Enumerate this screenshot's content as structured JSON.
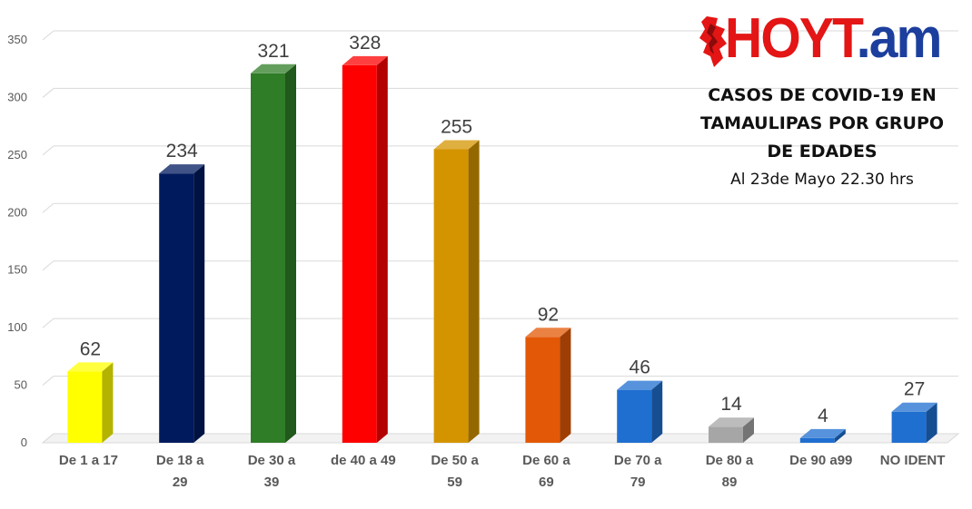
{
  "logo": {
    "text_main": "HOYT",
    "text_accent": ".am"
  },
  "chart_data": {
    "type": "bar",
    "title_lines": [
      "CASOS DE COVID-19 EN",
      "TAMAULIPAS POR GRUPO",
      "DE EDADES"
    ],
    "subtitle": "Al 23de Mayo 22.30 hrs",
    "categories": [
      [
        "De 1 a 17"
      ],
      [
        "De 18 a",
        "29"
      ],
      [
        "De 30 a",
        "39"
      ],
      [
        "de 40 a 49"
      ],
      [
        "De 50 a",
        "59"
      ],
      [
        "De 60 a",
        "69"
      ],
      [
        "De 70 a",
        "79"
      ],
      [
        "De 80 a",
        "89"
      ],
      [
        "De 90 a99"
      ],
      [
        "NO IDENT"
      ]
    ],
    "values": [
      62,
      234,
      321,
      328,
      255,
      92,
      46,
      14,
      4,
      27
    ],
    "colors": [
      "#ffff00",
      "#001a5e",
      "#2f7d26",
      "#ff0000",
      "#d49400",
      "#e35806",
      "#1f6fd0",
      "#a6a6a6",
      "#1f6fd0",
      "#1f6fd0"
    ],
    "ylim": [
      0,
      350
    ],
    "yticks": [
      0,
      50,
      100,
      150,
      200,
      250,
      300,
      350
    ],
    "grid": true,
    "xlabel": "",
    "ylabel": ""
  }
}
